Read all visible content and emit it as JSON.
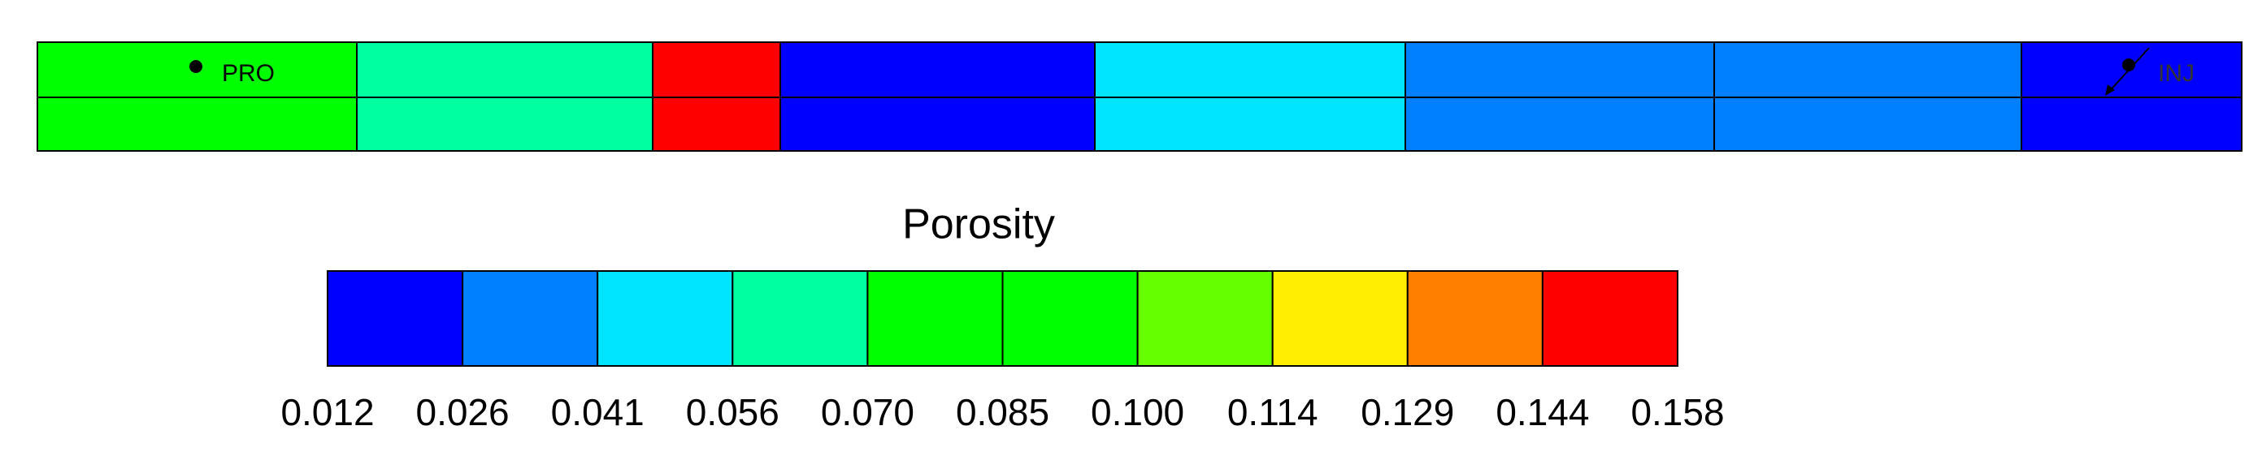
{
  "chart_data": {
    "type": "heatmap",
    "title": "Porosity",
    "values": [
      [
        0.078,
        0.063,
        0.15,
        0.019,
        0.048,
        0.033,
        0.033,
        0.019
      ],
      [
        0.078,
        0.063,
        0.15,
        0.019,
        0.048,
        0.033,
        0.033,
        0.019
      ]
    ],
    "wells": [
      {
        "label": "PRO",
        "column": 0
      },
      {
        "label": "INJ",
        "column": 7
      }
    ],
    "colorbar": {
      "colors": [
        "#0000ff",
        "#0080ff",
        "#00e5ff",
        "#00ffa0",
        "#00ff00",
        "#00ff00",
        "#66ff00",
        "#ffee00",
        "#ff8000",
        "#ff0000"
      ],
      "ticks": [
        0.012,
        0.026,
        0.041,
        0.056,
        {
          "value": 0.07,
          "label": "0.070"
        },
        0.085,
        {
          "value": 0.1,
          "label": "0.100"
        },
        0.114,
        0.129,
        0.144,
        0.158
      ]
    }
  }
}
